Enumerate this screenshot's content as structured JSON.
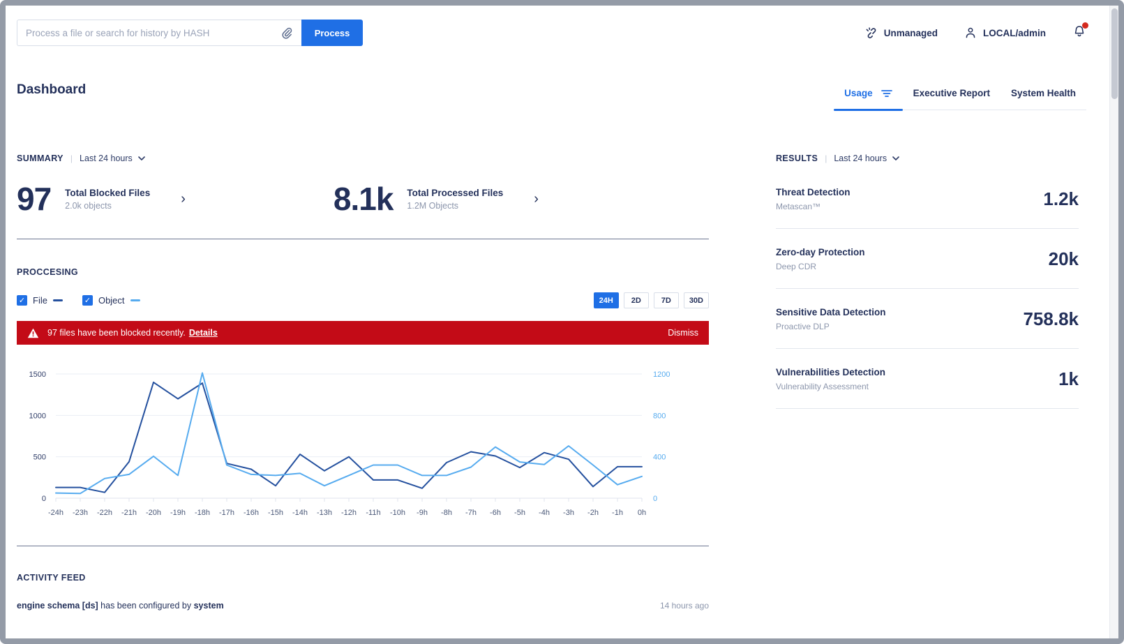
{
  "topbar": {
    "search_placeholder": "Process a file or search for history by HASH",
    "process_button": "Process",
    "unmanaged_label": "Unmanaged",
    "user_label": "LOCAL/admin"
  },
  "header": {
    "title": "Dashboard",
    "tabs": [
      {
        "label": "Usage",
        "active": true
      },
      {
        "label": "Executive Report",
        "active": false
      },
      {
        "label": "System Health",
        "active": false
      }
    ]
  },
  "summary": {
    "heading": "SUMMARY",
    "range": "Last 24 hours",
    "stats": [
      {
        "value": "97",
        "label": "Total Blocked Files",
        "sub": "2.0k objects"
      },
      {
        "value": "8.1k",
        "label": "Total Processed Files",
        "sub": "1.2M Objects"
      }
    ]
  },
  "processing": {
    "heading": "PROCCESING",
    "legend": [
      {
        "label": "File",
        "color": "#24509E"
      },
      {
        "label": "Object",
        "color": "#56ABEF"
      }
    ],
    "ranges": [
      "24H",
      "2D",
      "7D",
      "30D"
    ],
    "active_range": "24H",
    "alert": {
      "text": "97 files have been blocked recently.",
      "link": "Details",
      "dismiss": "Dismiss"
    }
  },
  "chart_data": {
    "type": "line",
    "x": [
      "-24h",
      "-23h",
      "-22h",
      "-21h",
      "-20h",
      "-19h",
      "-18h",
      "-17h",
      "-16h",
      "-15h",
      "-14h",
      "-13h",
      "-12h",
      "-11h",
      "-10h",
      "-9h",
      "-8h",
      "-7h",
      "-6h",
      "-5h",
      "-4h",
      "-3h",
      "-2h",
      "-1h",
      "0h"
    ],
    "series": [
      {
        "name": "File",
        "axis": "left",
        "color": "#24509E",
        "values": [
          130,
          130,
          70,
          440,
          1400,
          1200,
          1390,
          420,
          350,
          150,
          530,
          330,
          500,
          220,
          220,
          120,
          430,
          560,
          510,
          370,
          550,
          470,
          140,
          380,
          380
        ]
      },
      {
        "name": "Object",
        "axis": "right",
        "color": "#56ABEF",
        "values": [
          50,
          45,
          190,
          230,
          405,
          220,
          1210,
          320,
          230,
          220,
          240,
          120,
          220,
          320,
          320,
          220,
          220,
          300,
          495,
          350,
          325,
          505,
          320,
          130,
          210
        ]
      }
    ],
    "left_axis": {
      "ticks": [
        0,
        500,
        1000,
        1500
      ],
      "max": 1500,
      "color": "#2D3B66"
    },
    "right_axis": {
      "ticks": [
        0,
        400,
        800,
        1200
      ],
      "max": 1200,
      "color": "#56ABEF"
    },
    "grid": true,
    "legend_position": "above-left"
  },
  "results": {
    "heading": "RESULTS",
    "range": "Last 24 hours",
    "items": [
      {
        "title": "Threat Detection",
        "subtitle": "Metascan™",
        "value": "1.2k"
      },
      {
        "title": "Zero-day Protection",
        "subtitle": "Deep CDR",
        "value": "20k"
      },
      {
        "title": "Sensitive Data Detection",
        "subtitle": "Proactive DLP",
        "value": "758.8k"
      },
      {
        "title": "Vulnerabilities Detection",
        "subtitle": "Vulnerability Assessment",
        "value": "1k"
      }
    ]
  },
  "activity": {
    "heading": "ACTIVITY FEED",
    "items": [
      {
        "subject": "engine schema [ds]",
        "action": " has been configured by ",
        "actor": "system",
        "time": "14 hours ago"
      }
    ]
  },
  "colors": {
    "accent_blue": "#1F6FE5",
    "alert_red": "#C30B17",
    "navy_text": "#23305A",
    "muted_text": "#8C96AC"
  }
}
